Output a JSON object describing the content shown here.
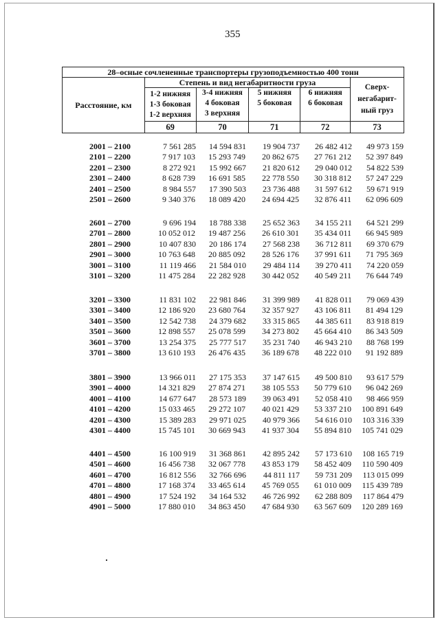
{
  "page_number": "355",
  "table": {
    "title": "28–осные сочлененные транспортеры грузоподъемностью 400 тонн",
    "distance_header": "Расстояние, км",
    "degree_header": "Степень и вид негабаритности груза",
    "columns": [
      {
        "lines": [
          "1-2 нижняя",
          "1-3 боковая",
          "1-2 верхняя"
        ],
        "number": "69"
      },
      {
        "lines": [
          "3-4 нижняя",
          "4 боковая",
          "3 верхняя"
        ],
        "number": "70"
      },
      {
        "lines": [
          "5 нижняя",
          "5 боковая"
        ],
        "number": "71"
      },
      {
        "lines": [
          "6 нижняя",
          "6 боковая"
        ],
        "number": "72"
      },
      {
        "lines": [
          "Сверх-",
          "негабарит-",
          "ный груз"
        ],
        "number": "73"
      }
    ],
    "groups": [
      [
        [
          "2001 – 2100",
          "7 561 285",
          "14 594 831",
          "19 904 737",
          "26 482 412",
          "49 973 159"
        ],
        [
          "2101 – 2200",
          "7 917 103",
          "15 293 749",
          "20 862 675",
          "27 761 212",
          "52 397 849"
        ],
        [
          "2201 – 2300",
          "8 272 921",
          "15 992 667",
          "21 820 612",
          "29 040 012",
          "54 822 539"
        ],
        [
          "2301 – 2400",
          "8 628 739",
          "16 691 585",
          "22 778 550",
          "30 318 812",
          "57 247 229"
        ],
        [
          "2401 – 2500",
          "8 984 557",
          "17 390 503",
          "23 736 488",
          "31 597 612",
          "59 671 919"
        ],
        [
          "2501 – 2600",
          "9 340 376",
          "18 089 420",
          "24 694 425",
          "32 876 411",
          "62 096 609"
        ]
      ],
      [
        [
          "2601 – 2700",
          "9 696 194",
          "18 788 338",
          "25 652 363",
          "34 155 211",
          "64 521 299"
        ],
        [
          "2701 – 2800",
          "10 052 012",
          "19 487 256",
          "26 610 301",
          "35 434 011",
          "66 945 989"
        ],
        [
          "2801 – 2900",
          "10 407 830",
          "20 186 174",
          "27 568 238",
          "36 712 811",
          "69 370 679"
        ],
        [
          "2901 – 3000",
          "10 763 648",
          "20 885 092",
          "28 526 176",
          "37 991 611",
          "71 795 369"
        ],
        [
          "3001 – 3100",
          "11 119 466",
          "21 584 010",
          "29 484 114",
          "39 270 411",
          "74 220 059"
        ],
        [
          "3101 – 3200",
          "11 475 284",
          "22 282 928",
          "30 442 052",
          "40 549 211",
          "76 644 749"
        ]
      ],
      [
        [
          "3201 – 3300",
          "11 831 102",
          "22 981 846",
          "31 399 989",
          "41 828 011",
          "79 069 439"
        ],
        [
          "3301 – 3400",
          "12 186 920",
          "23 680 764",
          "32 357 927",
          "43 106 811",
          "81 494 129"
        ],
        [
          "3401 – 3500",
          "12 542 738",
          "24 379 682",
          "33 315 865",
          "44 385 611",
          "83 918 819"
        ],
        [
          "3501 – 3600",
          "12 898 557",
          "25 078 599",
          "34 273 802",
          "45 664 410",
          "86 343 509"
        ],
        [
          "3601 – 3700",
          "13 254 375",
          "25 777 517",
          "35 231 740",
          "46 943 210",
          "88 768 199"
        ],
        [
          "3701 – 3800",
          "13 610 193",
          "26 476 435",
          "36 189 678",
          "48 222 010",
          "91 192 889"
        ]
      ],
      [
        [
          "3801 – 3900",
          "13 966 011",
          "27 175 353",
          "37 147 615",
          "49 500 810",
          "93 617 579"
        ],
        [
          "3901 – 4000",
          "14 321 829",
          "27 874 271",
          "38 105 553",
          "50 779 610",
          "96 042 269"
        ],
        [
          "4001 – 4100",
          "14 677 647",
          "28 573 189",
          "39 063 491",
          "52 058 410",
          "98 466 959"
        ],
        [
          "4101 – 4200",
          "15 033 465",
          "29 272 107",
          "40 021 429",
          "53 337 210",
          "100 891 649"
        ],
        [
          "4201 – 4300",
          "15 389 283",
          "29 971 025",
          "40 979 366",
          "54 616 010",
          "103 316 339"
        ],
        [
          "4301 – 4400",
          "15 745 101",
          "30 669 943",
          "41 937 304",
          "55 894 810",
          "105 741 029"
        ]
      ],
      [
        [
          "4401 – 4500",
          "16 100 919",
          "31 368 861",
          "42 895 242",
          "57 173 610",
          "108 165 719"
        ],
        [
          "4501 – 4600",
          "16 456 738",
          "32 067 778",
          "43 853 179",
          "58 452 409",
          "110 590 409"
        ],
        [
          "4601 – 4700",
          "16 812 556",
          "32 766 696",
          "44 811 117",
          "59 731 209",
          "113 015 099"
        ],
        [
          "4701 – 4800",
          "17 168 374",
          "33 465 614",
          "45 769 055",
          "61 010 009",
          "115 439 789"
        ],
        [
          "4801 – 4900",
          "17 524 192",
          "34 164 532",
          "46 726 992",
          "62 288 809",
          "117 864 479"
        ],
        [
          "4901 – 5000",
          "17 880 010",
          "34 863 450",
          "47 684 930",
          "63 567 609",
          "120 289 169"
        ]
      ]
    ]
  }
}
